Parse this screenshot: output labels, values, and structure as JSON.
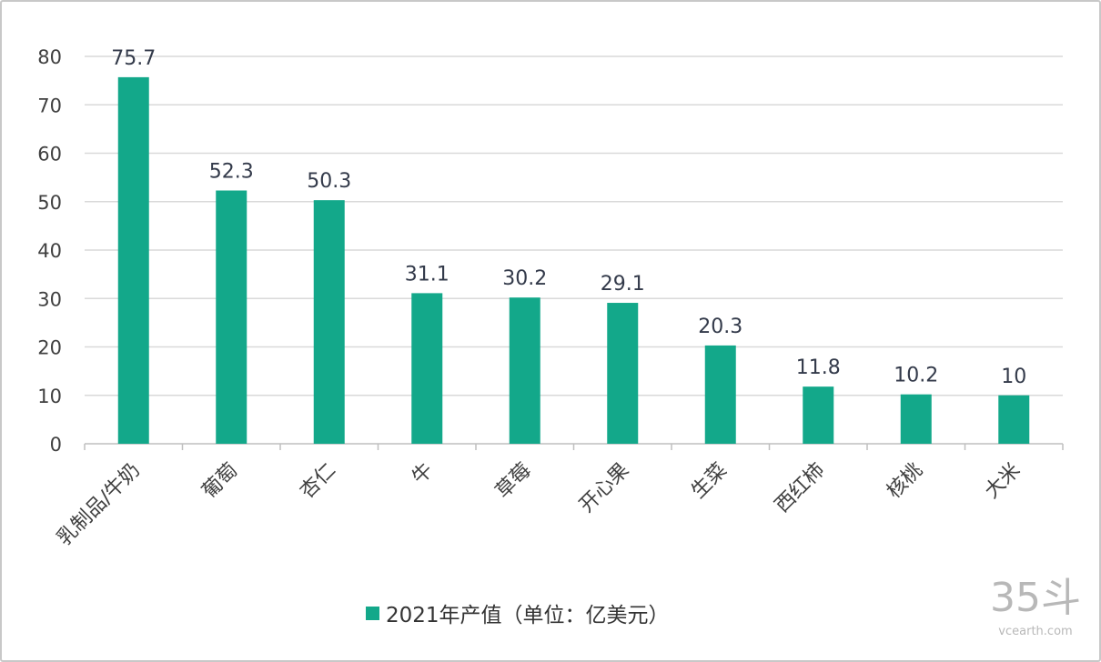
{
  "chart_data": {
    "type": "bar",
    "categories": [
      "乳制品/牛奶",
      "葡萄",
      "杏仁",
      "牛",
      "草莓",
      "开心果",
      "生菜",
      "西红柿",
      "核桃",
      "大米"
    ],
    "series": [
      {
        "name": "2021年产值（单位：亿美元）",
        "values": [
          75.7,
          52.3,
          50.3,
          31.1,
          30.2,
          29.1,
          20.3,
          11.8,
          10.2,
          10
        ]
      }
    ],
    "data_labels": [
      "75.7",
      "52.3",
      "50.3",
      "31.1",
      "30.2",
      "29.1",
      "20.3",
      "11.8",
      "10.2",
      "10"
    ],
    "yticks": [
      "0",
      "10",
      "20",
      "30",
      "40",
      "50",
      "60",
      "70",
      "80"
    ],
    "ylim": [
      0,
      80
    ],
    "grid": true,
    "legend": "bottom",
    "bar_color": "#13a88a"
  },
  "watermark": {
    "logo": "35斗",
    "site": "vcearth.com"
  }
}
